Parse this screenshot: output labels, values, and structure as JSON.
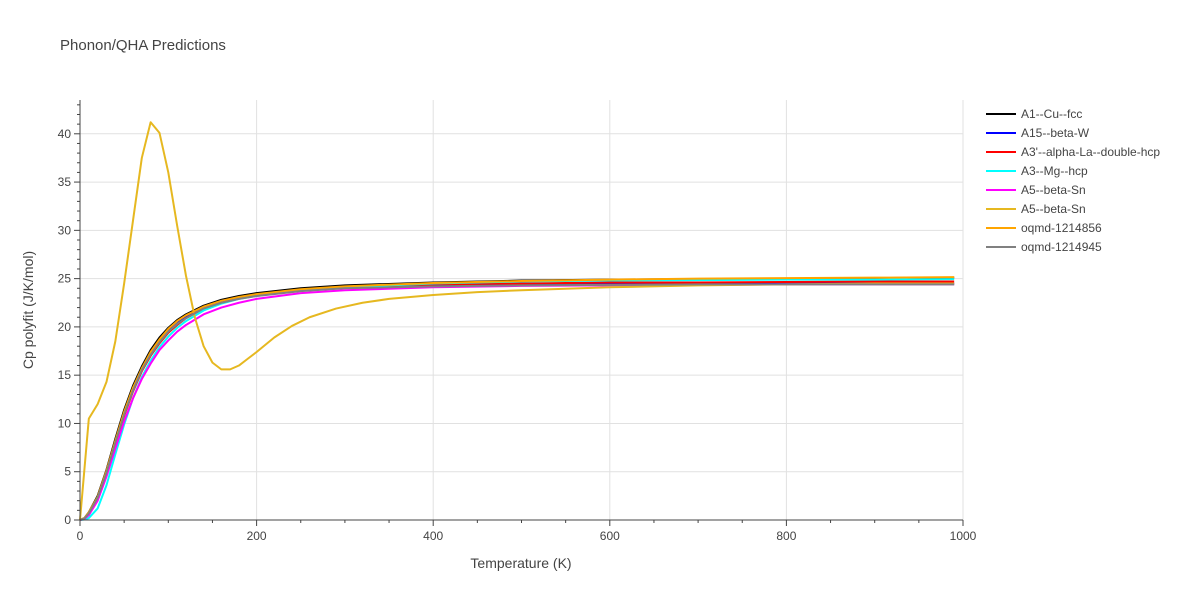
{
  "chart_data": {
    "type": "line",
    "title": "Phonon/QHA Predictions",
    "xlabel": "Temperature (K)",
    "ylabel": "Cp polyfit (J/K/mol)",
    "xlim": [
      0,
      1000
    ],
    "ylim": [
      0,
      43.5
    ],
    "x_ticks": [
      0,
      200,
      400,
      600,
      800,
      1000
    ],
    "y_ticks": [
      0,
      5,
      10,
      15,
      20,
      25,
      30,
      35,
      40
    ],
    "grid": true,
    "legend_position": "right",
    "series": [
      {
        "name": "A1--Cu--fcc",
        "color": "#000000",
        "x": [
          0,
          5,
          10,
          20,
          30,
          40,
          50,
          60,
          70,
          80,
          90,
          100,
          110,
          120,
          140,
          160,
          180,
          200,
          250,
          300,
          400,
          500,
          600,
          700,
          800,
          900,
          990
        ],
        "y": [
          0,
          0.2,
          0.8,
          2.5,
          5.2,
          8.4,
          11.4,
          13.9,
          15.9,
          17.6,
          18.9,
          19.9,
          20.7,
          21.3,
          22.2,
          22.8,
          23.2,
          23.5,
          24.0,
          24.3,
          24.6,
          24.8,
          24.9,
          24.95,
          25.0,
          25.05,
          25.1
        ]
      },
      {
        "name": "A15--beta-W",
        "color": "#0000ff",
        "x": [
          0,
          5,
          10,
          20,
          30,
          40,
          50,
          60,
          70,
          80,
          90,
          100,
          110,
          120,
          140,
          160,
          180,
          200,
          250,
          300,
          400,
          500,
          600,
          700,
          800,
          900,
          990
        ],
        "y": [
          0,
          0.15,
          0.7,
          2.3,
          5.0,
          8.1,
          11.0,
          13.5,
          15.6,
          17.2,
          18.5,
          19.6,
          20.4,
          21.0,
          22.0,
          22.6,
          23.0,
          23.3,
          23.8,
          24.1,
          24.3,
          24.4,
          24.45,
          24.5,
          24.5,
          24.5,
          24.5
        ]
      },
      {
        "name": "A3'--alpha-La--double-hcp",
        "color": "#ff0000",
        "x": [
          0,
          5,
          10,
          20,
          30,
          40,
          50,
          60,
          70,
          80,
          90,
          100,
          110,
          120,
          140,
          160,
          180,
          200,
          250,
          300,
          400,
          500,
          600,
          700,
          800,
          900,
          990
        ],
        "y": [
          0,
          0.15,
          0.7,
          2.2,
          4.8,
          7.8,
          10.8,
          13.3,
          15.4,
          17.0,
          18.3,
          19.4,
          20.2,
          20.9,
          21.9,
          22.5,
          23.0,
          23.3,
          23.8,
          24.1,
          24.4,
          24.5,
          24.6,
          24.6,
          24.65,
          24.7,
          24.7
        ]
      },
      {
        "name": "A3--Mg--hcp",
        "color": "#00ffff",
        "x": [
          0,
          5,
          10,
          20,
          30,
          40,
          50,
          60,
          70,
          80,
          90,
          100,
          110,
          120,
          140,
          160,
          180,
          200,
          250,
          300,
          400,
          500,
          600,
          700,
          800,
          900,
          990
        ],
        "y": [
          0,
          0.05,
          0.2,
          1.2,
          3.6,
          6.8,
          9.9,
          12.6,
          14.8,
          16.5,
          17.9,
          19.0,
          19.9,
          20.6,
          21.7,
          22.4,
          22.9,
          23.2,
          23.8,
          24.1,
          24.5,
          24.7,
          24.8,
          24.85,
          24.9,
          24.9,
          24.95
        ]
      },
      {
        "name": "A5--beta-Sn",
        "color": "#ff00ff",
        "x": [
          0,
          5,
          10,
          20,
          30,
          40,
          50,
          60,
          70,
          80,
          90,
          100,
          110,
          120,
          140,
          160,
          180,
          200,
          250,
          300,
          400,
          500,
          600,
          700,
          800,
          900,
          990
        ],
        "y": [
          0,
          0.1,
          0.5,
          2.0,
          4.5,
          7.4,
          10.2,
          12.6,
          14.6,
          16.2,
          17.6,
          18.6,
          19.5,
          20.2,
          21.3,
          22.0,
          22.5,
          22.9,
          23.5,
          23.8,
          24.1,
          24.25,
          24.3,
          24.35,
          24.4,
          24.4,
          24.4
        ]
      },
      {
        "name": "A5--beta-Sn",
        "color": "#e6b820",
        "x": [
          0,
          10,
          20,
          30,
          40,
          50,
          60,
          70,
          80,
          90,
          100,
          110,
          120,
          130,
          140,
          150,
          160,
          170,
          180,
          190,
          200,
          220,
          240,
          260,
          290,
          320,
          350,
          400,
          450,
          500,
          600,
          700,
          800,
          900,
          990
        ],
        "y": [
          0,
          10.5,
          12.0,
          14.3,
          18.5,
          24.5,
          31.0,
          37.5,
          41.2,
          40.1,
          36.0,
          30.5,
          25.3,
          21.0,
          18.0,
          16.3,
          15.6,
          15.6,
          16.0,
          16.7,
          17.4,
          18.9,
          20.1,
          21.0,
          21.9,
          22.5,
          22.9,
          23.3,
          23.6,
          23.8,
          24.1,
          24.3,
          24.4,
          24.5,
          24.5
        ]
      },
      {
        "name": "oqmd-1214856",
        "color": "#ffa500",
        "x": [
          0,
          5,
          10,
          20,
          30,
          40,
          50,
          60,
          70,
          80,
          90,
          100,
          110,
          120,
          140,
          160,
          180,
          200,
          250,
          300,
          400,
          500,
          600,
          700,
          800,
          900,
          990
        ],
        "y": [
          0,
          0.2,
          0.8,
          2.4,
          5.1,
          8.2,
          11.2,
          13.7,
          15.7,
          17.4,
          18.7,
          19.8,
          20.6,
          21.2,
          22.1,
          22.7,
          23.1,
          23.4,
          23.9,
          24.2,
          24.55,
          24.75,
          24.9,
          25.0,
          25.05,
          25.1,
          25.15
        ]
      },
      {
        "name": "oqmd-1214945",
        "color": "#808080",
        "x": [
          0,
          5,
          10,
          20,
          30,
          40,
          50,
          60,
          70,
          80,
          90,
          100,
          110,
          120,
          140,
          160,
          180,
          200,
          250,
          300,
          400,
          500,
          600,
          700,
          800,
          900,
          990
        ],
        "y": [
          0,
          0.15,
          0.7,
          2.3,
          4.9,
          8.0,
          10.9,
          13.4,
          15.5,
          17.1,
          18.4,
          19.5,
          20.3,
          20.9,
          21.9,
          22.5,
          22.9,
          23.2,
          23.7,
          24.0,
          24.2,
          24.3,
          24.35,
          24.4,
          24.4,
          24.4,
          24.4
        ]
      }
    ]
  }
}
